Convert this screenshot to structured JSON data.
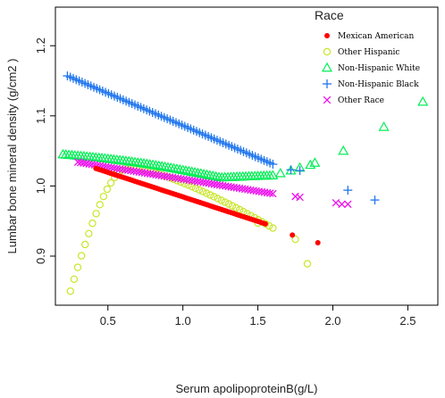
{
  "chart_data": {
    "type": "scatter",
    "title": "",
    "xlabel": "Serum apolipoproteinB(g/L)",
    "ylabel": "Lumbar bone mineral density (g/cm2 )",
    "xlim": [
      0.15,
      2.7
    ],
    "ylim": [
      0.83,
      1.255
    ],
    "xticks": [
      "0.5",
      "1.0",
      "1.5",
      "2.0",
      "2.5"
    ],
    "xtick_values": [
      0.5,
      1.0,
      1.5,
      2.0,
      2.5
    ],
    "yticks": [
      "0.9",
      "1.0",
      "1.1",
      "1.2"
    ],
    "ytick_values": [
      0.9,
      1.0,
      1.1,
      1.2
    ],
    "grid": false,
    "legend": {
      "title": "Race",
      "placement": "top-right",
      "entries": [
        "Mexican American",
        "Other Hispanic",
        "Non-Hispanic White",
        "Non-Hispanic Black",
        "Other Race"
      ]
    },
    "series": [
      {
        "name": "Mexican American",
        "marker": "filled-circle",
        "color": "#ff0000",
        "curve": {
          "x_start": 0.42,
          "x_end": 1.55,
          "y_start": 1.025,
          "y_end": 0.946
        },
        "points": [
          [
            1.73,
            0.93
          ],
          [
            1.9,
            0.919
          ]
        ]
      },
      {
        "name": "Other Hispanic",
        "marker": "open-circle",
        "color": "#c8e629",
        "curve": {
          "x_start": 0.25,
          "x_end": 1.6,
          "y_min": 0.85,
          "peak_x": 0.65,
          "peak_y": 1.027,
          "y_end": 0.94
        },
        "points": [
          [
            1.5,
            0.947
          ],
          [
            1.75,
            0.924
          ],
          [
            1.83,
            0.889
          ]
        ]
      },
      {
        "name": "Non-Hispanic White",
        "marker": "open-triangle",
        "color": "#00ee55",
        "curve": {
          "x_start": 0.2,
          "x_end": 1.6,
          "y_start": 1.045,
          "y_min": 1.012,
          "y_end": 1.015
        },
        "points": [
          [
            1.65,
            1.018
          ],
          [
            1.72,
            1.022
          ],
          [
            1.78,
            1.026
          ],
          [
            1.85,
            1.03
          ],
          [
            1.88,
            1.033
          ],
          [
            2.07,
            1.05
          ],
          [
            2.34,
            1.084
          ],
          [
            2.6,
            1.12
          ]
        ]
      },
      {
        "name": "Non-Hispanic Black",
        "marker": "plus",
        "color": "#2277ee",
        "curve": {
          "x_start": 0.23,
          "x_end": 1.6,
          "y_start": 1.157,
          "y_end": 1.031
        },
        "points": [
          [
            1.72,
            1.023
          ],
          [
            1.78,
            1.022
          ],
          [
            2.1,
            0.994
          ],
          [
            2.28,
            0.98
          ]
        ]
      },
      {
        "name": "Other Race",
        "marker": "cross",
        "color": "#ee11ee",
        "curve": {
          "x_start": 0.3,
          "x_end": 1.6,
          "y_start": 1.034,
          "y_end": 0.989
        },
        "points": [
          [
            1.75,
            0.985
          ],
          [
            1.78,
            0.984
          ],
          [
            2.02,
            0.976
          ],
          [
            2.06,
            0.974
          ],
          [
            2.1,
            0.974
          ]
        ]
      }
    ]
  }
}
